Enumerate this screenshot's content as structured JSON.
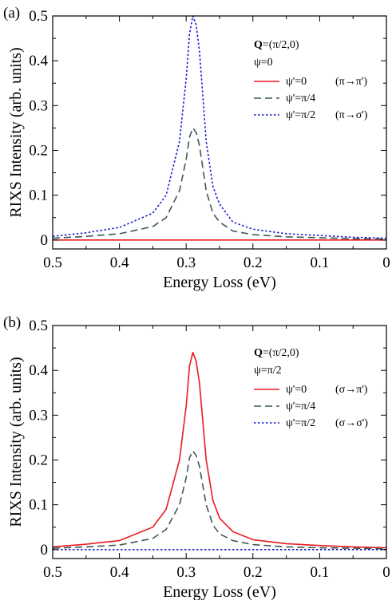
{
  "chart_data": [
    {
      "type": "line",
      "panel_label": "(a)",
      "title": "",
      "xlabel": "Energy Loss (eV)",
      "ylabel": "RIXS Intensity (arb. units)",
      "xlim": [
        0.5,
        0
      ],
      "ylim": [
        -0.02,
        0.5
      ],
      "x_ticks": [
        "0.5",
        "0.4",
        "0.3",
        "0.2",
        "0.1",
        "0"
      ],
      "y_ticks": [
        "0",
        "0.1",
        "0.2",
        "0.3",
        "0.4",
        "0.5"
      ],
      "annotation": {
        "q_symbol": "Q",
        "q_value": "=(π/2,0)",
        "psi": "ψ=0"
      },
      "legend_position": "top-right",
      "x": [
        0.5,
        0.45,
        0.4,
        0.35,
        0.33,
        0.31,
        0.3,
        0.295,
        0.29,
        0.285,
        0.28,
        0.27,
        0.26,
        0.25,
        0.23,
        0.2,
        0.15,
        0.1,
        0.05,
        0.0
      ],
      "series": [
        {
          "name": "ψ'=0",
          "transition": "(π→π')",
          "color": "#e8191f",
          "style": "solid",
          "values": [
            0,
            0,
            0,
            0,
            0,
            0,
            0,
            0,
            0,
            0,
            0,
            0,
            0,
            0,
            0,
            0,
            0,
            0,
            0,
            0
          ]
        },
        {
          "name": "ψ'=π/4",
          "transition": "",
          "color": "#3f5a50",
          "style": "dashed",
          "values": [
            0.004,
            0.008,
            0.014,
            0.03,
            0.05,
            0.11,
            0.18,
            0.23,
            0.25,
            0.24,
            0.21,
            0.11,
            0.06,
            0.04,
            0.02,
            0.012,
            0.007,
            0.005,
            0.003,
            0.002
          ]
        },
        {
          "name": "ψ'=π/2",
          "transition": "(π→σ')",
          "color": "#1a1acc",
          "style": "dotted",
          "values": [
            0.008,
            0.016,
            0.028,
            0.06,
            0.1,
            0.22,
            0.36,
            0.46,
            0.5,
            0.48,
            0.42,
            0.22,
            0.12,
            0.08,
            0.04,
            0.024,
            0.014,
            0.01,
            0.006,
            0.004
          ]
        }
      ]
    },
    {
      "type": "line",
      "panel_label": "(b)",
      "title": "",
      "xlabel": "Energy Loss (eV)",
      "ylabel": "RIXS Intensity (arb. units)",
      "xlim": [
        0.5,
        0
      ],
      "ylim": [
        -0.02,
        0.5
      ],
      "x_ticks": [
        "0.5",
        "0.4",
        "0.3",
        "0.2",
        "0.1",
        "0"
      ],
      "y_ticks": [
        "0",
        "0.1",
        "0.2",
        "0.3",
        "0.4",
        "0.5"
      ],
      "annotation": {
        "q_symbol": "Q",
        "q_value": "=(π/2,0)",
        "psi": "ψ=π/2"
      },
      "legend_position": "top-right",
      "x": [
        0.5,
        0.45,
        0.4,
        0.35,
        0.33,
        0.31,
        0.3,
        0.295,
        0.29,
        0.285,
        0.28,
        0.27,
        0.26,
        0.25,
        0.23,
        0.2,
        0.15,
        0.1,
        0.05,
        0.0
      ],
      "series": [
        {
          "name": "ψ'=0",
          "transition": "(σ→π')",
          "color": "#e8191f",
          "style": "solid",
          "values": [
            0.006,
            0.012,
            0.02,
            0.05,
            0.09,
            0.2,
            0.32,
            0.41,
            0.44,
            0.42,
            0.37,
            0.2,
            0.11,
            0.07,
            0.04,
            0.022,
            0.013,
            0.009,
            0.006,
            0.004
          ]
        },
        {
          "name": "ψ'=π/4",
          "transition": "",
          "color": "#3f5a50",
          "style": "dashed",
          "values": [
            0.003,
            0.006,
            0.01,
            0.025,
            0.045,
            0.1,
            0.16,
            0.205,
            0.22,
            0.21,
            0.185,
            0.1,
            0.055,
            0.035,
            0.02,
            0.011,
            0.006,
            0.004,
            0.003,
            0.002
          ]
        },
        {
          "name": "ψ'=π/2",
          "transition": "(σ→σ')",
          "color": "#1a1acc",
          "style": "dotted",
          "values": [
            0,
            0,
            0,
            0,
            0,
            0,
            0,
            0,
            0,
            0,
            0,
            0,
            0,
            0,
            0,
            0,
            0,
            0,
            0,
            0
          ]
        }
      ]
    }
  ]
}
